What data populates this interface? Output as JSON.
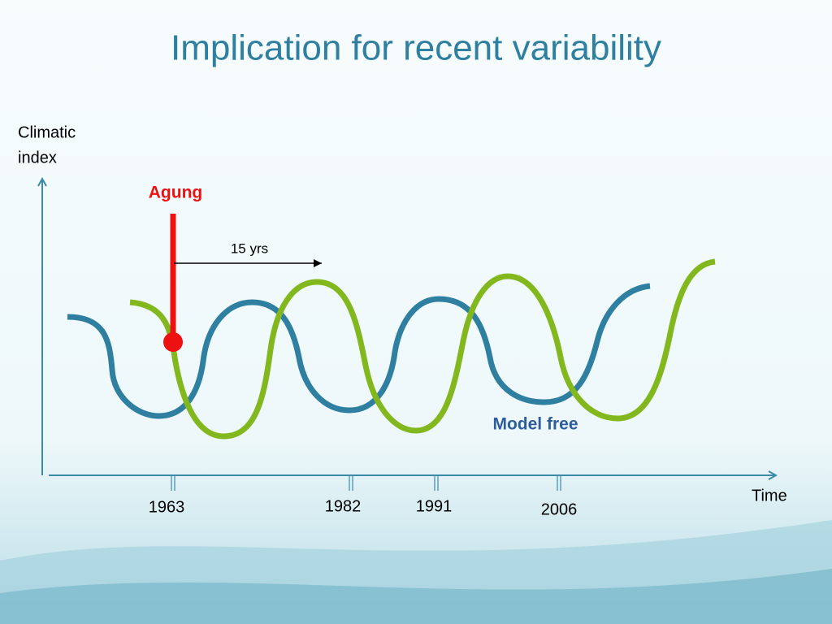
{
  "title": "Implication for recent variability",
  "y_axis_label": [
    "Climatic",
    "index"
  ],
  "x_axis_label": "Time",
  "event_label": "Agung",
  "lag_label": "15 yrs",
  "curve_label": "Model free",
  "year_labels": [
    1963,
    1982,
    1991,
    2006
  ]
}
